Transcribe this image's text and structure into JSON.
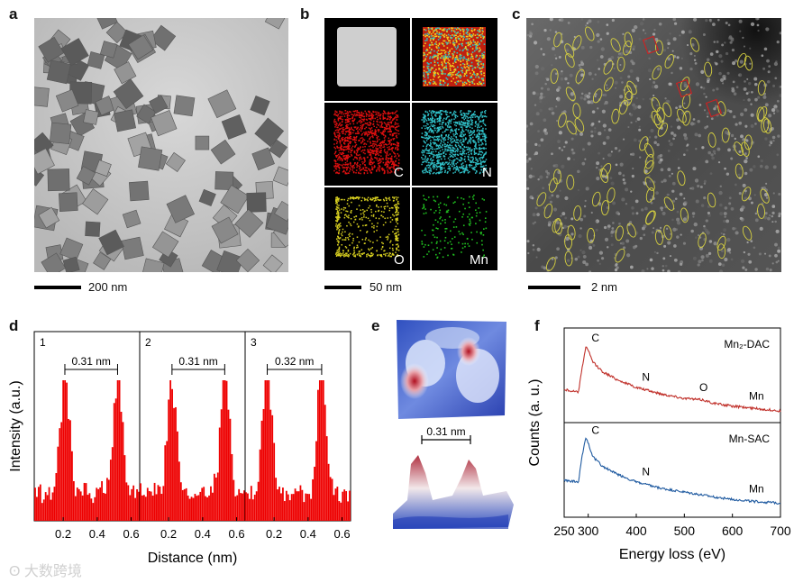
{
  "panels": {
    "a": {
      "letter": "a",
      "scale": "200 nm"
    },
    "b": {
      "letter": "b",
      "scale": "50 nm",
      "maps": [
        {
          "label": "",
          "color": "#cfcfcf"
        },
        {
          "label": "",
          "color": "#e8c020"
        },
        {
          "label": "C",
          "color": "#e01010"
        },
        {
          "label": "N",
          "color": "#30c0c8"
        },
        {
          "label": "O",
          "color": "#d8d020"
        },
        {
          "label": "Mn",
          "color": "#20c020"
        }
      ]
    },
    "c": {
      "letter": "c",
      "scale": "2 nm"
    },
    "d": {
      "letter": "d"
    },
    "e": {
      "letter": "e",
      "distance": "0.31 nm"
    },
    "f": {
      "letter": "f"
    }
  },
  "watermark": "大数跨境",
  "chart_data": [
    {
      "type": "bar",
      "panel": "d",
      "ylabel": "Intensity (a.u.)",
      "xlabel": "Distance (nm)",
      "xticks": [
        "0.2",
        "0.4",
        "0.6"
      ],
      "xlim": [
        0.03,
        0.65
      ],
      "subplots": [
        {
          "label": "1",
          "spacing": "0.31 nm",
          "peaks": [
            0.21,
            0.52
          ]
        },
        {
          "label": "2",
          "spacing": "0.31 nm",
          "peaks": [
            0.22,
            0.53
          ]
        },
        {
          "label": "3",
          "spacing": "0.32 nm",
          "peaks": [
            0.16,
            0.48
          ]
        }
      ]
    },
    {
      "type": "line",
      "panel": "f",
      "ylabel": "Counts (a. u.)",
      "xlabel": "Energy loss (eV)",
      "xticks": [
        250,
        300,
        400,
        500,
        600,
        700
      ],
      "xlim": [
        250,
        700
      ],
      "series": [
        {
          "name": "Mn₂-DAC",
          "color": "#c0302a",
          "annotations": [
            "C",
            "N",
            "O",
            "Mn"
          ],
          "x": [
            250,
            280,
            285,
            290,
            295,
            300,
            310,
            330,
            360,
            400,
            450,
            500,
            540,
            560,
            600,
            650,
            700
          ],
          "y": [
            0.35,
            0.32,
            0.55,
            0.72,
            0.9,
            0.85,
            0.7,
            0.58,
            0.48,
            0.38,
            0.3,
            0.24,
            0.22,
            0.18,
            0.14,
            0.11,
            0.08
          ]
        },
        {
          "name": "Mn-SAC",
          "color": "#1f5aa0",
          "annotations": [
            "C",
            "N",
            "Mn"
          ],
          "x": [
            250,
            280,
            285,
            290,
            295,
            300,
            310,
            330,
            360,
            400,
            450,
            500,
            560,
            600,
            650,
            700
          ],
          "y": [
            0.4,
            0.38,
            0.62,
            0.8,
            0.95,
            0.88,
            0.7,
            0.58,
            0.48,
            0.38,
            0.3,
            0.25,
            0.19,
            0.16,
            0.13,
            0.11
          ]
        }
      ]
    }
  ]
}
